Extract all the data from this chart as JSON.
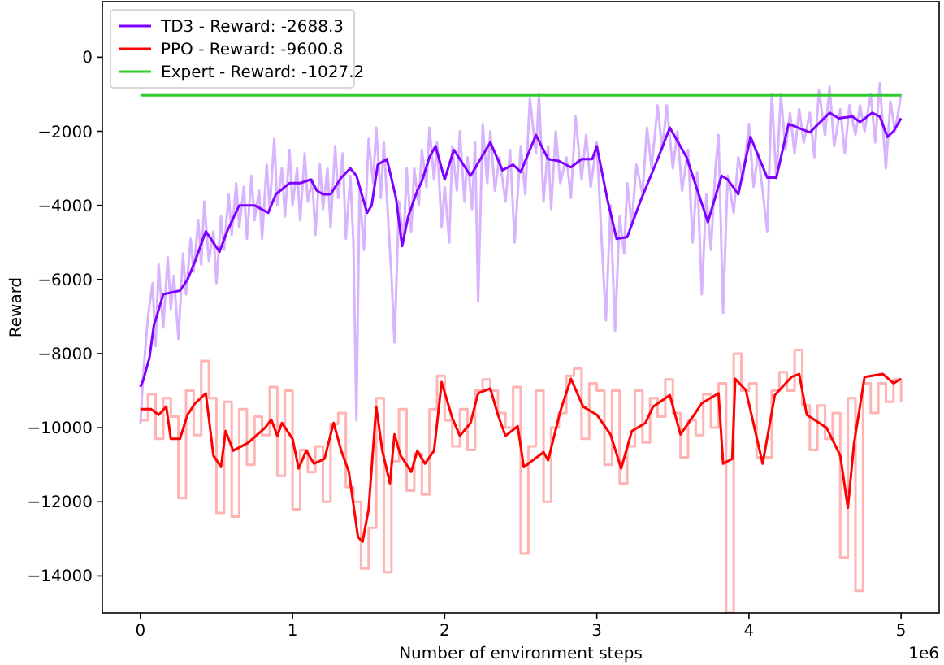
{
  "chart_data": {
    "type": "line",
    "xlabel": "Number of environment steps",
    "ylabel": "Reward",
    "annotations": [
      "1e6"
    ],
    "xlim": [
      -0.25,
      5.25
    ],
    "ylim": [
      -15000,
      1500
    ],
    "xticks": [
      0,
      1,
      2,
      3,
      4,
      5
    ],
    "yticks": [
      -14000,
      -12000,
      -10000,
      -8000,
      -6000,
      -4000,
      -2000,
      0
    ],
    "grid": false,
    "legend": "top left",
    "line_style": "solid",
    "marker": "none",
    "series": [
      {
        "color": "#d8b4fe",
        "x": [
          0,
          0.02,
          0.05,
          0.08,
          0.1,
          0.12,
          0.15,
          0.18,
          0.2,
          0.22,
          0.25,
          0.28,
          0.3,
          0.33,
          0.35,
          0.38,
          0.4,
          0.42,
          0.45,
          0.48,
          0.5,
          0.53,
          0.55,
          0.58,
          0.6,
          0.63,
          0.65,
          0.68,
          0.7,
          0.73,
          0.75,
          0.78,
          0.8,
          0.83,
          0.85,
          0.88,
          0.9,
          0.93,
          0.95,
          0.98,
          1,
          1.03,
          1.05,
          1.08,
          1.1,
          1.13,
          1.15,
          1.18,
          1.2,
          1.23,
          1.25,
          1.28,
          1.3,
          1.33,
          1.35,
          1.38,
          1.4,
          1.42,
          1.44,
          1.47,
          1.5,
          1.53,
          1.55,
          1.58,
          1.6,
          1.63,
          1.65,
          1.67,
          1.7,
          1.73,
          1.75,
          1.78,
          1.8,
          1.83,
          1.85,
          1.88,
          1.9,
          1.93,
          1.95,
          1.98,
          2,
          2.03,
          2.05,
          2.08,
          2.1,
          2.13,
          2.15,
          2.18,
          2.2,
          2.22,
          2.25,
          2.28,
          2.3,
          2.33,
          2.36,
          2.4,
          2.43,
          2.46,
          2.5,
          2.53,
          2.56,
          2.6,
          2.62,
          2.65,
          2.68,
          2.7,
          2.73,
          2.76,
          2.8,
          2.83,
          2.86,
          2.9,
          2.93,
          2.96,
          3,
          3.03,
          3.06,
          3.09,
          3.12,
          3.15,
          3.18,
          3.2,
          3.23,
          3.26,
          3.3,
          3.33,
          3.36,
          3.4,
          3.43,
          3.46,
          3.5,
          3.53,
          3.56,
          3.6,
          3.63,
          3.66,
          3.69,
          3.72,
          3.75,
          3.78,
          3.8,
          3.83,
          3.86,
          3.9,
          3.93,
          3.96,
          4,
          4.03,
          4.06,
          4.09,
          4.12,
          4.15,
          4.18,
          4.21,
          4.24,
          4.27,
          4.3,
          4.33,
          4.36,
          4.4,
          4.43,
          4.46,
          4.5,
          4.53,
          4.56,
          4.6,
          4.63,
          4.66,
          4.7,
          4.73,
          4.76,
          4.8,
          4.83,
          4.86,
          4.9,
          4.93,
          4.96,
          5
        ],
        "values": [
          -9900,
          -8500,
          -7000,
          -6100,
          -7800,
          -5600,
          -7300,
          -5400,
          -6800,
          -5900,
          -7600,
          -5300,
          -6400,
          -4900,
          -5800,
          -4400,
          -5600,
          -3900,
          -5500,
          -4700,
          -6100,
          -4300,
          -5200,
          -3700,
          -4800,
          -3400,
          -4600,
          -3500,
          -4900,
          -3200,
          -4400,
          -3600,
          -4900,
          -2900,
          -4100,
          -2200,
          -4000,
          -3000,
          -4300,
          -2500,
          -4000,
          -3000,
          -4400,
          -2600,
          -3900,
          -3300,
          -4800,
          -2900,
          -4100,
          -3000,
          -4600,
          -2400,
          -3800,
          -2600,
          -4900,
          -3200,
          -5000,
          -9800,
          -3600,
          -5200,
          -2200,
          -3400,
          -1900,
          -3800,
          -2300,
          -4500,
          -5900,
          -7700,
          -3900,
          -5000,
          -3000,
          -4700,
          -3000,
          -4000,
          -2500,
          -3500,
          -1900,
          -3300,
          -2300,
          -4600,
          -3500,
          -5000,
          -2400,
          -3600,
          -2000,
          -3900,
          -2700,
          -4100,
          -2300,
          -6600,
          -1800,
          -3400,
          -2000,
          -3600,
          -2700,
          -3900,
          -2500,
          -5000,
          -2400,
          -3700,
          -1100,
          -2600,
          -1000,
          -3900,
          -2400,
          -4100,
          -2000,
          -3400,
          -2700,
          -3800,
          -1600,
          -3300,
          -2100,
          -3500,
          -2300,
          -4800,
          -7100,
          -4000,
          -7400,
          -4300,
          -5300,
          -3400,
          -4500,
          -2900,
          -3700,
          -1900,
          -3000,
          -1300,
          -2500,
          -1300,
          -3000,
          -2000,
          -3600,
          -2500,
          -5000,
          -3100,
          -6400,
          -3700,
          -5200,
          -3000,
          -2100,
          -6900,
          -3200,
          -4200,
          -2700,
          -3300,
          -1800,
          -3500,
          -2600,
          -3600,
          -4700,
          -1000,
          -3300,
          -1000,
          -2500,
          -1500,
          -2600,
          -1400,
          -2300,
          -1500,
          -2700,
          -900,
          -2100,
          -800,
          -2400,
          -1400,
          -2600,
          -1300,
          -2100,
          -1300,
          -2000,
          -1000,
          -2300,
          -700,
          -3000,
          -1200,
          -2000,
          -1000
        ]
      },
      {
        "name": "TD3 - Reward: -2688.3",
        "color": "#7f00ff",
        "x": [
          0,
          0.02,
          0.06,
          0.09,
          0.1,
          0.15,
          0.26,
          0.31,
          0.36,
          0.43,
          0.52,
          0.57,
          0.65,
          0.75,
          0.84,
          0.89,
          0.98,
          1.05,
          1.12,
          1.16,
          1.2,
          1.25,
          1.32,
          1.38,
          1.42,
          1.49,
          1.52,
          1.56,
          1.62,
          1.68,
          1.72,
          1.76,
          1.82,
          1.85,
          1.9,
          1.94,
          2,
          2.06,
          2.17,
          2.3,
          2.38,
          2.45,
          2.5,
          2.6,
          2.68,
          2.75,
          2.83,
          2.9,
          2.97,
          3,
          3.07,
          3.13,
          3.2,
          3.29,
          3.4,
          3.48,
          3.59,
          3.73,
          3.82,
          3.86,
          3.93,
          4.01,
          4.12,
          4.18,
          4.26,
          4.4,
          4.53,
          4.59,
          4.68,
          4.73,
          4.81,
          4.86,
          4.91,
          4.95,
          5
        ],
        "values": [
          -8900,
          -8700,
          -8100,
          -7200,
          -7100,
          -6400,
          -6300,
          -6000,
          -5500,
          -4700,
          -5250,
          -4700,
          -4000,
          -4000,
          -4200,
          -3700,
          -3400,
          -3400,
          -3300,
          -3600,
          -3700,
          -3700,
          -3250,
          -3000,
          -3200,
          -4200,
          -4000,
          -2900,
          -2750,
          -3800,
          -5100,
          -4300,
          -3600,
          -3350,
          -2700,
          -2400,
          -3300,
          -2500,
          -3200,
          -2300,
          -3050,
          -2900,
          -3100,
          -2100,
          -2750,
          -2800,
          -2970,
          -2750,
          -2750,
          -2400,
          -3850,
          -4900,
          -4850,
          -3850,
          -2750,
          -1900,
          -2700,
          -4450,
          -3200,
          -3300,
          -3700,
          -2150,
          -3250,
          -3250,
          -1800,
          -2030,
          -1500,
          -1650,
          -1600,
          -1750,
          -1500,
          -1600,
          -2150,
          -2000,
          -1650
        ]
      },
      {
        "type": "step",
        "color": "#ffb3b3",
        "x": [
          0,
          0.05,
          0.1,
          0.15,
          0.2,
          0.25,
          0.3,
          0.35,
          0.4,
          0.45,
          0.5,
          0.55,
          0.6,
          0.65,
          0.7,
          0.75,
          0.8,
          0.85,
          0.9,
          0.95,
          1,
          1.05,
          1.1,
          1.15,
          1.2,
          1.25,
          1.3,
          1.35,
          1.4,
          1.45,
          1.5,
          1.55,
          1.6,
          1.65,
          1.7,
          1.75,
          1.8,
          1.85,
          1.9,
          1.95,
          2,
          2.05,
          2.1,
          2.15,
          2.2,
          2.25,
          2.3,
          2.35,
          2.4,
          2.45,
          2.5,
          2.55,
          2.6,
          2.65,
          2.7,
          2.75,
          2.8,
          2.85,
          2.9,
          2.95,
          3,
          3.05,
          3.1,
          3.15,
          3.2,
          3.25,
          3.3,
          3.35,
          3.4,
          3.45,
          3.5,
          3.55,
          3.6,
          3.65,
          3.7,
          3.75,
          3.8,
          3.85,
          3.9,
          3.95,
          4,
          4.05,
          4.1,
          4.15,
          4.2,
          4.25,
          4.3,
          4.35,
          4.4,
          4.45,
          4.5,
          4.55,
          4.6,
          4.65,
          4.7,
          4.75,
          4.8,
          4.85,
          4.9,
          4.95,
          5
        ],
        "values": [
          -9800,
          -9100,
          -10300,
          -9200,
          -9700,
          -11900,
          -9000,
          -10200,
          -8200,
          -9200,
          -12300,
          -9300,
          -12400,
          -9500,
          -11000,
          -9700,
          -10200,
          -8900,
          -11300,
          -9000,
          -12200,
          -10600,
          -11200,
          -10500,
          -12000,
          -9900,
          -9600,
          -11600,
          -12000,
          -13800,
          -12700,
          -9200,
          -13900,
          -10900,
          -9500,
          -11700,
          -10700,
          -11800,
          -9500,
          -8600,
          -9800,
          -10500,
          -9500,
          -10600,
          -9000,
          -8700,
          -9000,
          -9600,
          -10000,
          -8900,
          -13400,
          -10500,
          -9000,
          -12000,
          -10000,
          -9600,
          -8600,
          -8400,
          -10300,
          -8800,
          -9000,
          -11000,
          -9000,
          -11500,
          -10500,
          -9000,
          -10400,
          -9200,
          -9700,
          -8700,
          -9600,
          -10800,
          -9800,
          -10200,
          -9100,
          -10000,
          -8800,
          -15000,
          -8000,
          -9000,
          -8800,
          -10800,
          -10800,
          -9000,
          -8500,
          -9000,
          -7900,
          -9400,
          -10600,
          -9400,
          -10300,
          -9600,
          -13500,
          -9200,
          -14400,
          -8800,
          -9600,
          -8800,
          -9300,
          -8700,
          -9300
        ]
      },
      {
        "name": "PPO - Reward: -9600.8",
        "color": "#ff0000",
        "x": [
          0,
          0.07,
          0.12,
          0.17,
          0.2,
          0.26,
          0.31,
          0.36,
          0.43,
          0.48,
          0.53,
          0.56,
          0.61,
          0.71,
          0.82,
          0.86,
          0.9,
          0.93,
          1,
          1.04,
          1.09,
          1.14,
          1.21,
          1.27,
          1.32,
          1.37,
          1.43,
          1.46,
          1.5,
          1.55,
          1.59,
          1.64,
          1.67,
          1.71,
          1.78,
          1.82,
          1.87,
          1.93,
          1.98,
          2.05,
          2.1,
          2.17,
          2.22,
          2.3,
          2.35,
          2.4,
          2.48,
          2.52,
          2.65,
          2.68,
          2.76,
          2.83,
          2.91,
          3,
          3.09,
          3.16,
          3.23,
          3.32,
          3.37,
          3.48,
          3.55,
          3.64,
          3.69,
          3.8,
          3.83,
          3.89,
          3.91,
          3.98,
          4.09,
          4.17,
          4.28,
          4.33,
          4.38,
          4.51,
          4.6,
          4.65,
          4.69,
          4.76,
          4.88,
          4.95,
          5
        ],
        "values": [
          -9500,
          -9500,
          -9650,
          -9430,
          -10300,
          -10300,
          -9650,
          -9340,
          -9070,
          -10750,
          -11060,
          -10090,
          -10620,
          -10400,
          -10000,
          -9780,
          -10220,
          -9870,
          -10300,
          -11100,
          -10620,
          -10970,
          -10840,
          -9870,
          -10620,
          -11190,
          -12950,
          -13080,
          -12200,
          -9430,
          -10620,
          -11500,
          -10180,
          -10750,
          -11190,
          -10620,
          -10970,
          -10620,
          -8770,
          -9740,
          -10220,
          -9870,
          -9070,
          -8940,
          -9650,
          -10220,
          -9960,
          -11060,
          -10660,
          -10880,
          -9560,
          -8680,
          -9430,
          -9650,
          -10180,
          -11100,
          -10090,
          -9870,
          -9430,
          -9120,
          -10180,
          -9650,
          -9340,
          -9070,
          -10970,
          -10840,
          -8680,
          -8990,
          -10970,
          -9120,
          -8630,
          -8550,
          -9650,
          -10000,
          -10750,
          -12160,
          -10440,
          -8630,
          -8550,
          -8800,
          -8680
        ]
      },
      {
        "name": "Expert - Reward: -1027.2",
        "color": "#2ecc2e",
        "x": [
          0,
          5
        ],
        "values": [
          -1027.2,
          -1027.2
        ]
      }
    ]
  }
}
